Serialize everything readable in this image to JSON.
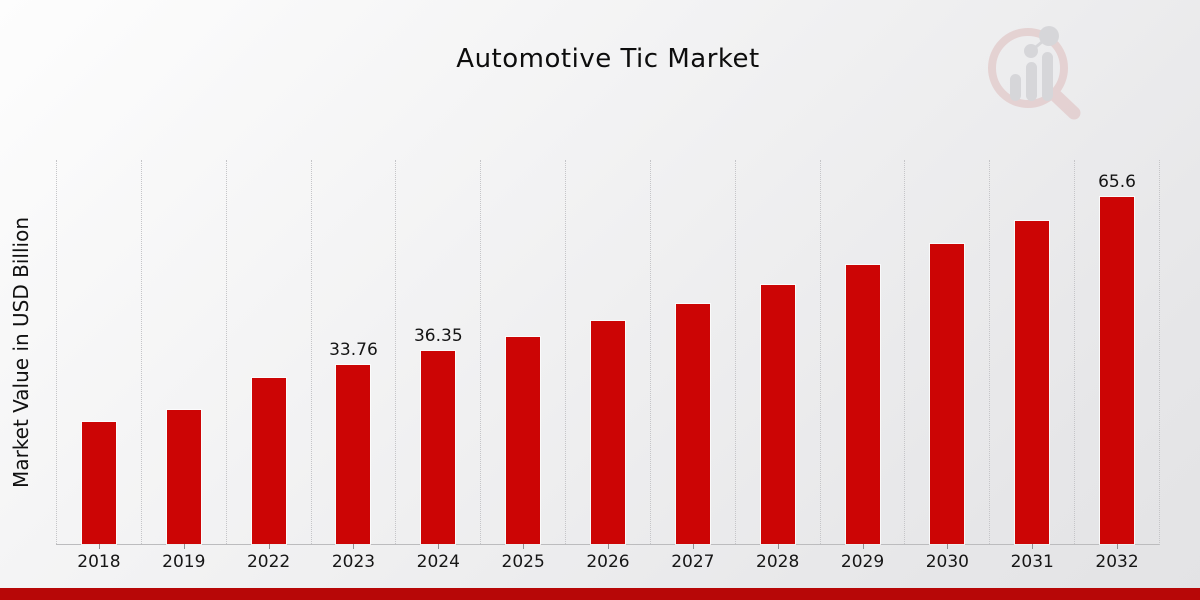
{
  "title": "Automotive Tic Market",
  "ylabel": "Market Value in USD Billion",
  "colors": {
    "bar": "#cc0505",
    "bottom_band": "#b70707",
    "gridline": "#c5c5c8",
    "axis_line": "#bcbcbe",
    "watermark_ring": "#debcbc",
    "watermark_bars": "#c5c5c9"
  },
  "watermark": {
    "name": "market-research-future-logo"
  },
  "chart_data": {
    "type": "bar",
    "title": "Automotive Tic Market",
    "xlabel": "",
    "ylabel": "Market Value in USD Billion",
    "categories": [
      "2018",
      "2019",
      "2022",
      "2023",
      "2024",
      "2025",
      "2026",
      "2027",
      "2028",
      "2029",
      "2030",
      "2031",
      "2032"
    ],
    "values": [
      23.1,
      25.3,
      31.4,
      33.76,
      36.35,
      39.1,
      42.1,
      45.4,
      48.9,
      52.6,
      56.6,
      61.0,
      65.6
    ],
    "data_labels": [
      "",
      "",
      "",
      "33.76",
      "36.35",
      "",
      "",
      "",
      "",
      "",
      "",
      "",
      "65.6"
    ],
    "ylim": [
      0,
      72.5
    ],
    "grid": "vertical-dotted",
    "legend": "none",
    "bar_color": "#cc0505"
  }
}
